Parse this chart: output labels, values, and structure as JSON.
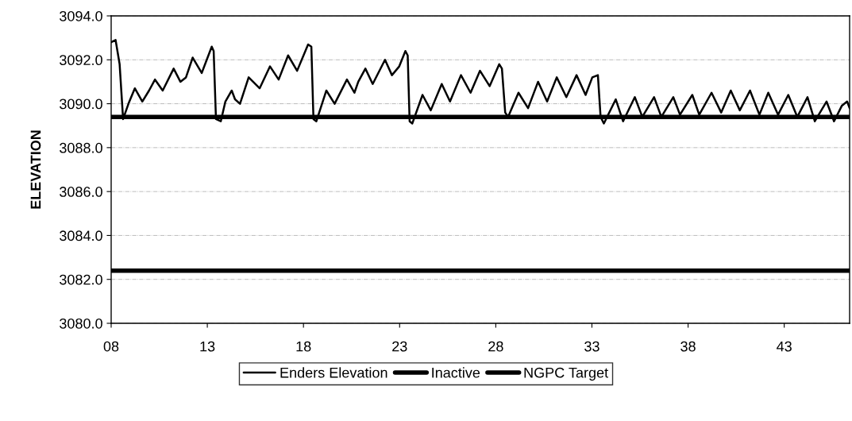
{
  "chart_data": {
    "type": "line",
    "ylabel": "ELEVATION",
    "xlim": [
      8,
      46.4
    ],
    "ylim": [
      3080,
      3094
    ],
    "xticks": [
      {
        "value": 8,
        "label": "08"
      },
      {
        "value": 13,
        "label": "13"
      },
      {
        "value": 18,
        "label": "18"
      },
      {
        "value": 23,
        "label": "23"
      },
      {
        "value": 28,
        "label": "28"
      },
      {
        "value": 33,
        "label": "33"
      },
      {
        "value": 38,
        "label": "38"
      },
      {
        "value": 43,
        "label": "43"
      }
    ],
    "yticks": [
      {
        "value": 3080,
        "label": "3080.0"
      },
      {
        "value": 3082,
        "label": "3082.0"
      },
      {
        "value": 3084,
        "label": "3084.0"
      },
      {
        "value": 3086,
        "label": "3086.0"
      },
      {
        "value": 3088,
        "label": "3088.0"
      },
      {
        "value": 3090,
        "label": "3090.0"
      },
      {
        "value": 3092,
        "label": "3092.0"
      },
      {
        "value": 3094,
        "label": "3094.0"
      }
    ],
    "grid": "y",
    "legend": "bottom",
    "line_style": "solid",
    "marker": "none",
    "series": [
      {
        "name": "Enders Elevation",
        "color": "#000000",
        "x": [
          8.0,
          8.23,
          8.44,
          8.62,
          8.9,
          9.23,
          9.62,
          9.97,
          10.28,
          10.68,
          11.25,
          11.6,
          11.89,
          12.24,
          12.71,
          13.23,
          13.33,
          13.45,
          13.7,
          13.94,
          14.27,
          14.44,
          14.7,
          15.15,
          15.72,
          16.26,
          16.71,
          17.2,
          17.67,
          18.24,
          18.41,
          18.52,
          18.67,
          19.19,
          19.62,
          20.26,
          20.65,
          20.85,
          21.22,
          21.6,
          22.24,
          22.6,
          22.98,
          23.3,
          23.42,
          23.52,
          23.66,
          24.19,
          24.62,
          25.19,
          25.62,
          26.19,
          26.69,
          27.18,
          27.68,
          28.18,
          28.32,
          28.49,
          28.64,
          29.18,
          29.68,
          30.2,
          30.67,
          31.17,
          31.67,
          32.2,
          32.67,
          33.02,
          33.31,
          33.45,
          33.62,
          34.24,
          34.62,
          35.23,
          35.62,
          36.23,
          36.61,
          37.23,
          37.58,
          38.22,
          38.58,
          39.22,
          39.72,
          40.22,
          40.69,
          41.22,
          41.71,
          42.17,
          42.68,
          43.21,
          43.68,
          44.21,
          44.59,
          45.2,
          45.59,
          45.99,
          46.27,
          46.4
        ],
        "values": [
          3092.8,
          3092.9,
          3091.8,
          3089.3,
          3090.0,
          3090.7,
          3090.1,
          3090.6,
          3091.1,
          3090.6,
          3091.6,
          3091.0,
          3091.2,
          3092.1,
          3091.4,
          3092.6,
          3092.4,
          3089.3,
          3089.2,
          3090.1,
          3090.6,
          3090.2,
          3090.0,
          3091.2,
          3090.7,
          3091.7,
          3091.1,
          3092.2,
          3091.5,
          3092.7,
          3092.6,
          3089.3,
          3089.2,
          3090.6,
          3090.0,
          3091.1,
          3090.5,
          3091.0,
          3091.6,
          3090.9,
          3092.0,
          3091.3,
          3091.7,
          3092.4,
          3092.2,
          3089.2,
          3089.1,
          3090.4,
          3089.7,
          3090.9,
          3090.1,
          3091.3,
          3090.5,
          3091.5,
          3090.8,
          3091.8,
          3091.6,
          3089.6,
          3089.4,
          3090.5,
          3089.8,
          3091.0,
          3090.1,
          3091.2,
          3090.3,
          3091.3,
          3090.4,
          3091.2,
          3091.3,
          3089.4,
          3089.1,
          3090.2,
          3089.2,
          3090.3,
          3089.4,
          3090.3,
          3089.4,
          3090.3,
          3089.5,
          3090.4,
          3089.5,
          3090.5,
          3089.6,
          3090.6,
          3089.7,
          3090.6,
          3089.5,
          3090.5,
          3089.5,
          3090.4,
          3089.4,
          3090.3,
          3089.2,
          3090.1,
          3089.2,
          3089.9,
          3090.1,
          3089.8
        ]
      },
      {
        "name": "Inactive",
        "color": "#000000",
        "x": [
          8,
          46.4
        ],
        "values": [
          3089.4,
          3089.4
        ]
      },
      {
        "name": "NGPC Target",
        "color": "#000000",
        "x": [
          8,
          46.4
        ],
        "values": [
          3082.4,
          3082.4
        ]
      }
    ]
  }
}
